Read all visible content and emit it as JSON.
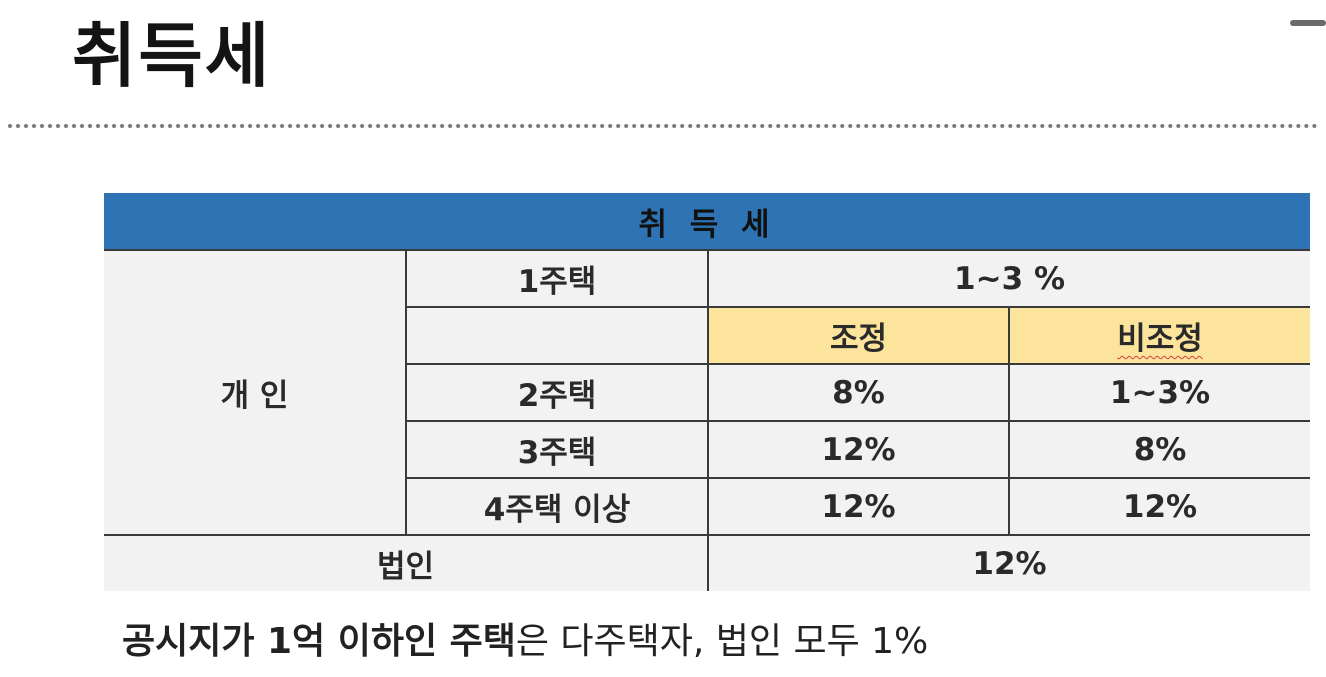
{
  "title": "취득세",
  "table": {
    "header": "취 득 세",
    "individual_label": "개 인",
    "rows": {
      "one_home": {
        "label": "1주택",
        "rate": "1~3 %"
      },
      "subheader": {
        "adjusted": "조정",
        "non_adjusted": "비조정"
      },
      "two_homes": {
        "label": "2주택",
        "adjusted": "8%",
        "non_adjusted": "1~3%"
      },
      "three_homes": {
        "label": "3주택",
        "adjusted": "12%",
        "non_adjusted": "8%"
      },
      "four_plus": {
        "label": "4주택 이상",
        "adjusted": "12%",
        "non_adjusted": "12%"
      },
      "corporation": {
        "label": "법인",
        "rate": "12%"
      }
    }
  },
  "footnote": {
    "part1": "공시지가 1억 이하인 주택",
    "part2": "은 다주택자, 법인 모두 1%"
  },
  "colors": {
    "header_bg": "#2e74b5",
    "highlight_bg": "#fde49c",
    "cell_bg": "#f2f2f2"
  }
}
